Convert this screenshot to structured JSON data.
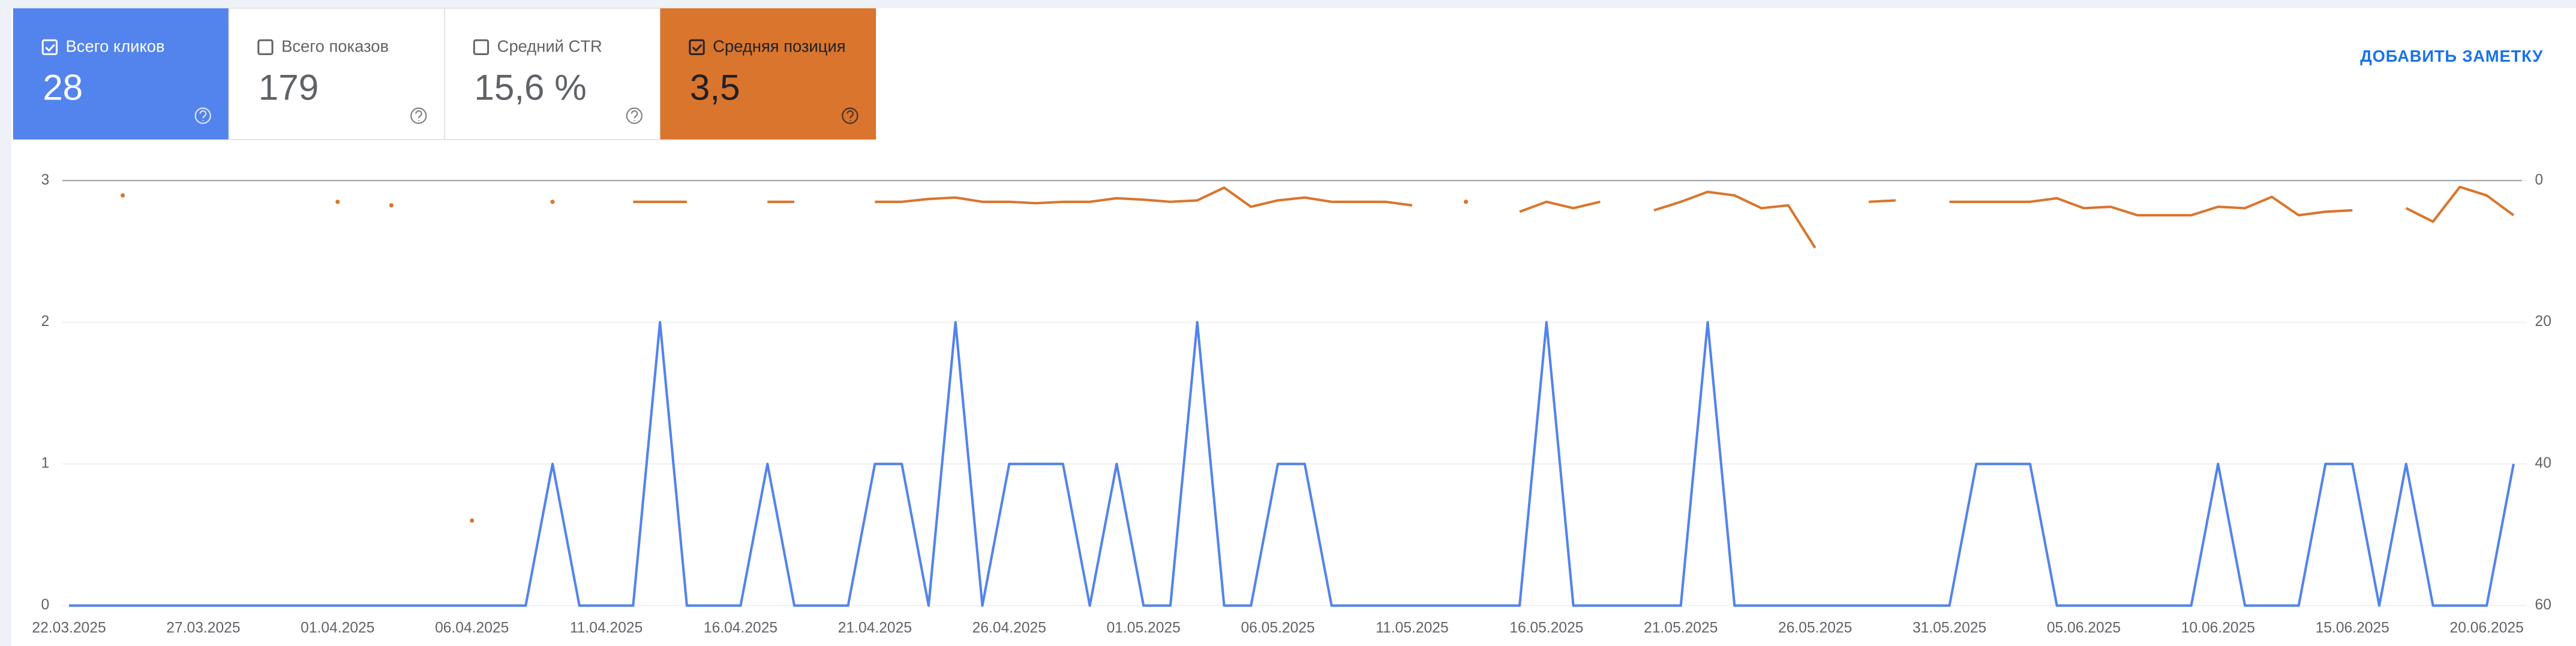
{
  "metrics": [
    {
      "label": "Всего кликов",
      "value": "28"
    },
    {
      "label": "Всего показов",
      "value": "179"
    },
    {
      "label": "Средний CTR",
      "value": "15,6 %"
    },
    {
      "label": "Средняя позиция",
      "value": "3,5"
    }
  ],
  "add_note_button": "ДОБАВИТЬ ЗАМЕТКУ",
  "chart_data": {
    "type": "line",
    "categories": [
      "22.03.2025",
      null,
      null,
      null,
      null,
      "27.03.2025",
      null,
      null,
      null,
      null,
      "01.04.2025",
      null,
      null,
      null,
      null,
      "06.04.2025",
      null,
      null,
      null,
      null,
      "11.04.2025",
      null,
      null,
      null,
      null,
      "16.04.2025",
      null,
      null,
      null,
      null,
      "21.04.2025",
      null,
      null,
      null,
      null,
      "26.04.2025",
      null,
      null,
      null,
      null,
      "01.05.2025",
      null,
      null,
      null,
      null,
      "06.05.2025",
      null,
      null,
      null,
      null,
      "11.05.2025",
      null,
      null,
      null,
      null,
      "16.05.2025",
      null,
      null,
      null,
      null,
      "21.05.2025",
      null,
      null,
      null,
      null,
      "26.05.2025",
      null,
      null,
      null,
      null,
      "31.05.2025",
      null,
      null,
      null,
      null,
      "05.06.2025",
      null,
      null,
      null,
      null,
      "10.06.2025",
      null,
      null,
      null,
      null,
      "15.06.2025",
      null,
      null,
      null,
      null,
      "20.06.2025",
      null
    ],
    "series": [
      {
        "color": "#5383ec",
        "values": [
          0,
          0,
          0,
          0,
          0,
          0,
          0,
          0,
          0,
          0,
          0,
          0,
          0,
          0,
          0,
          0,
          0,
          0,
          1,
          0,
          0,
          0,
          2,
          0,
          0,
          0,
          1,
          0,
          0,
          0,
          1,
          1,
          0,
          2,
          0,
          1,
          1,
          1,
          0,
          1,
          0,
          0,
          2,
          0,
          0,
          1,
          1,
          0,
          0,
          0,
          0,
          0,
          0,
          0,
          0,
          2,
          0,
          0,
          0,
          0,
          0,
          2,
          0,
          0,
          0,
          0,
          0,
          0,
          0,
          0,
          0,
          1,
          1,
          1,
          0,
          0,
          0,
          0,
          0,
          0,
          1,
          0,
          0,
          0,
          1,
          1,
          0,
          1,
          0,
          0,
          0,
          1
        ]
      },
      {
        "color": "#d9752d",
        "axis": "y2",
        "values": [
          null,
          null,
          2.1,
          null,
          null,
          null,
          null,
          null,
          null,
          null,
          3,
          null,
          3.5,
          null,
          null,
          48,
          null,
          null,
          3,
          null,
          null,
          3,
          3,
          3,
          null,
          null,
          3,
          3,
          null,
          null,
          3,
          3,
          2.6,
          2.4,
          3,
          3,
          3.2,
          3,
          3,
          2.5,
          2.7,
          3,
          2.8,
          1,
          3.7,
          2.8,
          2.4,
          3,
          3,
          3,
          3.5,
          null,
          3,
          null,
          4.4,
          3,
          3.9,
          3,
          null,
          4.2,
          3,
          1.6,
          2.1,
          3.9,
          3.5,
          9.5,
          null,
          3,
          2.8,
          null,
          3,
          3,
          3,
          3,
          2.5,
          3.9,
          3.7,
          4.9,
          4.9,
          4.9,
          3.7,
          3.9,
          2.3,
          4.9,
          4.4,
          4.2,
          null,
          3.9,
          5.8,
          0.9,
          2.1,
          4.9
        ]
      }
    ],
    "ylim": [
      0,
      3
    ],
    "yticks": [
      0,
      1,
      2,
      3
    ],
    "y2lim": [
      60,
      0
    ],
    "y2ticks": [
      0,
      20,
      40,
      60
    ],
    "grid": true
  }
}
